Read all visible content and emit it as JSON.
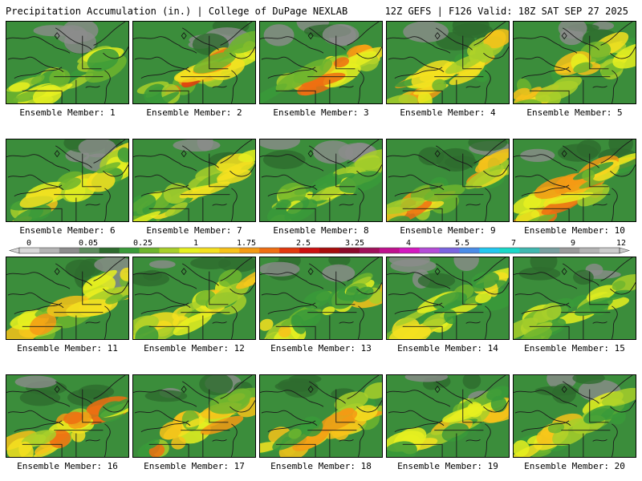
{
  "header": {
    "title_left": "Precipitation Accumulation (in.) | College of DuPage NEXLAB",
    "title_right": "12Z GEFS | F126 Valid: 18Z SAT SEP 27 2025"
  },
  "legend": {
    "tick_labels": [
      "0",
      "0.05",
      "0.25",
      "1",
      "1.75",
      "2.5",
      "3.25",
      "4",
      "5.5",
      "7",
      "9",
      "12"
    ],
    "colors": [
      "#d8d8d8",
      "#b4b4b4",
      "#8c8c8c",
      "#5e8c5e",
      "#2e6b2e",
      "#3a9a3a",
      "#6fb52e",
      "#a8cf2a",
      "#e6f020",
      "#f5e020",
      "#f7c21a",
      "#f49a14",
      "#ef6e12",
      "#e2380e",
      "#cc1010",
      "#a80c0c",
      "#8c0a2a",
      "#a0105a",
      "#c0108e",
      "#d418c0",
      "#b44cd8",
      "#7a64e0",
      "#4a8ce8",
      "#22c8f0",
      "#1ad8c8",
      "#40b8b0",
      "#7aa0a0",
      "#9a9a9a",
      "#b4b4b4",
      "#cccccc"
    ]
  },
  "members": [
    {
      "label": "Ensemble Member: 1"
    },
    {
      "label": "Ensemble Member: 2"
    },
    {
      "label": "Ensemble Member: 3"
    },
    {
      "label": "Ensemble Member: 4"
    },
    {
      "label": "Ensemble Member: 5"
    },
    {
      "label": "Ensemble Member: 6"
    },
    {
      "label": "Ensemble Member: 7"
    },
    {
      "label": "Ensemble Member: 8"
    },
    {
      "label": "Ensemble Member: 9"
    },
    {
      "label": "Ensemble Member: 10"
    },
    {
      "label": "Ensemble Member: 11"
    },
    {
      "label": "Ensemble Member: 12"
    },
    {
      "label": "Ensemble Member: 13"
    },
    {
      "label": "Ensemble Member: 14"
    },
    {
      "label": "Ensemble Member: 15"
    },
    {
      "label": "Ensemble Member: 16"
    },
    {
      "label": "Ensemble Member: 17"
    },
    {
      "label": "Ensemble Member: 18"
    },
    {
      "label": "Ensemble Member: 19"
    },
    {
      "label": "Ensemble Member: 20"
    }
  ]
}
